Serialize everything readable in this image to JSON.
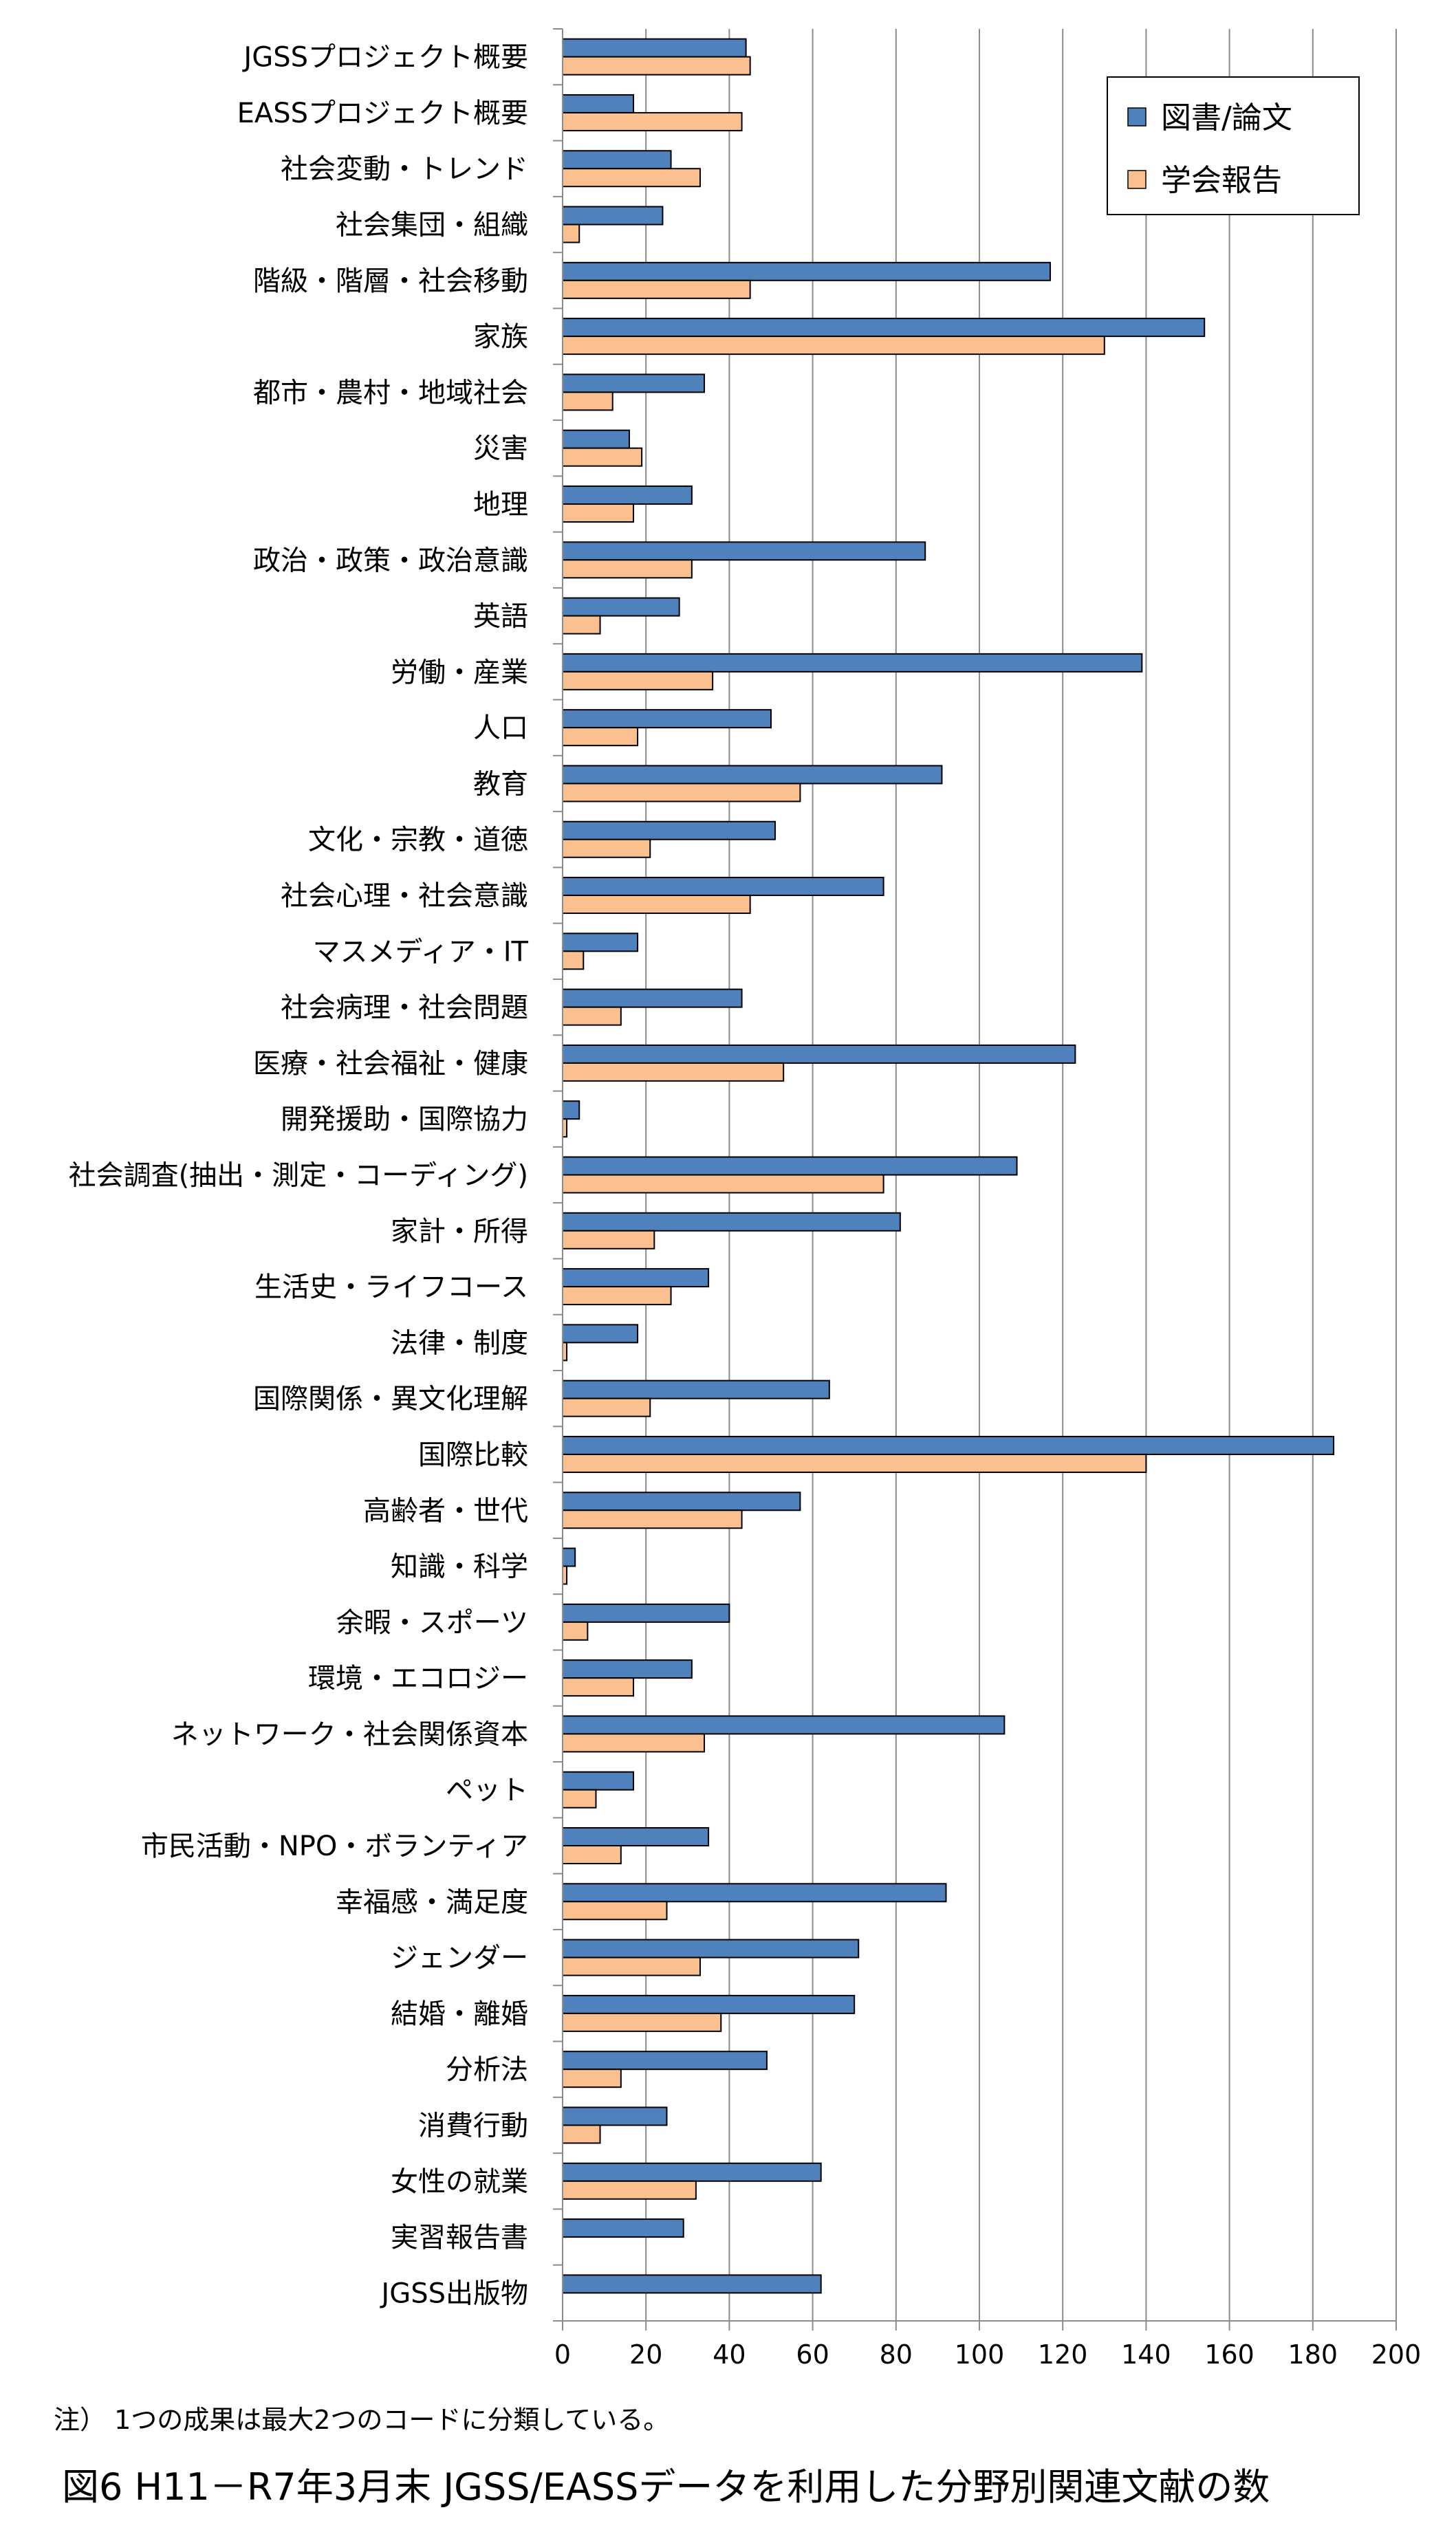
{
  "chart_data": {
    "type": "bar",
    "orientation": "horizontal",
    "categories": [
      "JGSSプロジェクト概要",
      "EASSプロジェクト概要",
      "社会変動・トレンド",
      "社会集団・組織",
      "階級・階層・社会移動",
      "家族",
      "都市・農村・地域社会",
      "災害",
      "地理",
      "政治・政策・政治意識",
      "英語",
      "労働・産業",
      "人口",
      "教育",
      "文化・宗教・道徳",
      "社会心理・社会意識",
      "マスメディア・IT",
      "社会病理・社会問題",
      "医療・社会福祉・健康",
      "開発援助・国際協力",
      "社会調査(抽出・測定・コーディング)",
      "家計・所得",
      "生活史・ライフコース",
      "法律・制度",
      "国際関係・異文化理解",
      "国際比較",
      "高齢者・世代",
      "知識・科学",
      "余暇・スポーツ",
      "環境・エコロジー",
      "ネットワーク・社会関係資本",
      "ペット",
      "市民活動・NPO・ボランティア",
      "幸福感・満足度",
      "ジェンダー",
      "結婚・離婚",
      "分析法",
      "消費行動",
      "女性の就業",
      "実習報告書",
      "JGSS出版物"
    ],
    "series": [
      {
        "name": "図書/論文",
        "color": "#4F81BD",
        "values": [
          44,
          17,
          26,
          24,
          117,
          154,
          34,
          16,
          31,
          87,
          28,
          139,
          50,
          91,
          51,
          77,
          18,
          43,
          123,
          4,
          109,
          81,
          35,
          18,
          64,
          185,
          57,
          3,
          40,
          31,
          106,
          17,
          35,
          92,
          71,
          70,
          49,
          25,
          62,
          29,
          62
        ]
      },
      {
        "name": "学会報告",
        "color": "#FAC090",
        "values": [
          45,
          43,
          33,
          4,
          45,
          130,
          12,
          19,
          17,
          31,
          9,
          36,
          18,
          57,
          21,
          45,
          5,
          14,
          53,
          1,
          77,
          22,
          26,
          1,
          21,
          140,
          43,
          1,
          6,
          17,
          34,
          8,
          14,
          25,
          33,
          38,
          14,
          9,
          32,
          0,
          0
        ]
      }
    ],
    "xlim": [
      0,
      200
    ],
    "xticks": [
      "0",
      "20",
      "40",
      "60",
      "80",
      "100",
      "120",
      "140",
      "160",
      "180",
      "200"
    ],
    "grid": true,
    "legend_position": "top-right"
  },
  "note": "注） 1つの成果は最大2つのコードに分類している。",
  "caption": "図6 H11－R7年3月末 JGSS/EASSデータを利用した分野別関連文献の数"
}
